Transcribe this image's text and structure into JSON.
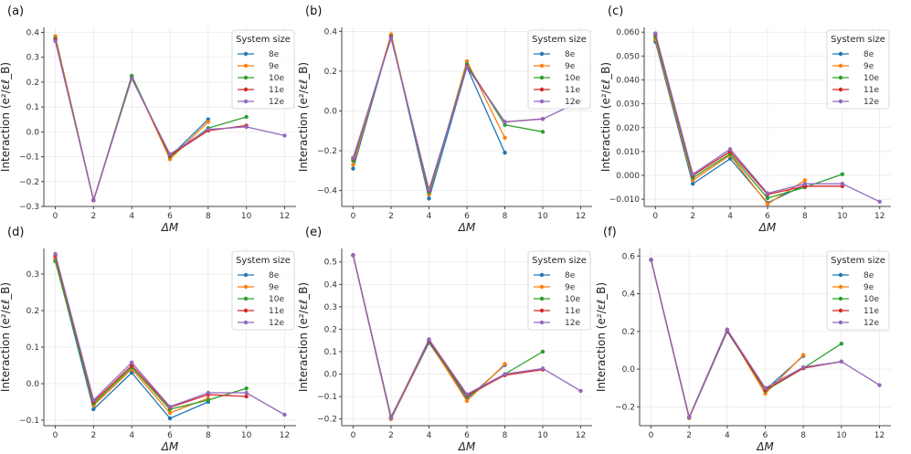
{
  "legend": {
    "title": "System size",
    "series_names": [
      "8e",
      "9e",
      "10e",
      "11e",
      "12e"
    ],
    "colors": [
      "#1f77b4",
      "#ff7f0e",
      "#2ca02c",
      "#d62728",
      "#9467bd"
    ]
  },
  "chart_data": [
    {
      "type": "line",
      "panel_label": "(a)",
      "xlabel": "ΔM",
      "ylabel": "Interaction (e²/εℓ_B)",
      "xlim": [
        -0.6,
        12.6
      ],
      "ylim": [
        -0.3,
        0.42
      ],
      "xticks": [
        0,
        2,
        4,
        6,
        8,
        10,
        12
      ],
      "yticks": [
        -0.3,
        -0.2,
        -0.1,
        0.0,
        0.1,
        0.2,
        0.3,
        0.4
      ],
      "ytick_labels": [
        "−0.3",
        "−0.2",
        "−0.1",
        "0.0",
        "0.1",
        "0.2",
        "0.3",
        "0.4"
      ],
      "series": [
        {
          "name": "8e",
          "x": [
            0,
            2,
            4,
            6,
            8
          ],
          "values": [
            0.38,
            -0.275,
            0.22,
            -0.1,
            0.05
          ]
        },
        {
          "name": "9e",
          "x": [
            0,
            2,
            4,
            6,
            8
          ],
          "values": [
            0.385,
            -0.275,
            0.225,
            -0.11,
            0.04
          ]
        },
        {
          "name": "10e",
          "x": [
            0,
            2,
            4,
            6,
            8,
            10
          ],
          "values": [
            0.375,
            -0.275,
            0.225,
            -0.1,
            0.015,
            0.06
          ]
        },
        {
          "name": "11e",
          "x": [
            0,
            2,
            4,
            6,
            8,
            10
          ],
          "values": [
            0.37,
            -0.275,
            0.215,
            -0.095,
            0.005,
            0.025
          ]
        },
        {
          "name": "12e",
          "x": [
            0,
            2,
            4,
            6,
            8,
            10,
            12
          ],
          "values": [
            0.365,
            -0.275,
            0.215,
            -0.09,
            0.01,
            0.02,
            -0.015
          ]
        }
      ]
    },
    {
      "type": "line",
      "panel_label": "(b)",
      "xlabel": "ΔM",
      "ylabel": "Interaction (e²/εℓ_B)",
      "xlim": [
        -0.6,
        12.6
      ],
      "ylim": [
        -0.48,
        0.42
      ],
      "xticks": [
        0,
        2,
        4,
        6,
        8,
        10,
        12
      ],
      "yticks": [
        -0.4,
        -0.2,
        0.0,
        0.2,
        0.4
      ],
      "ytick_labels": [
        "−0.4",
        "−0.2",
        "0.0",
        "0.2",
        "0.4"
      ],
      "series": [
        {
          "name": "8e",
          "x": [
            0,
            2,
            4,
            6,
            8
          ],
          "values": [
            -0.29,
            0.38,
            -0.44,
            0.22,
            -0.21
          ]
        },
        {
          "name": "9e",
          "x": [
            0,
            2,
            4,
            6,
            8
          ],
          "values": [
            -0.27,
            0.385,
            -0.42,
            0.25,
            -0.135
          ]
        },
        {
          "name": "10e",
          "x": [
            0,
            2,
            4,
            6,
            8,
            10
          ],
          "values": [
            -0.25,
            0.375,
            -0.41,
            0.235,
            -0.07,
            -0.105
          ]
        },
        {
          "name": "11e",
          "x": [
            0,
            2,
            4,
            6,
            8,
            10
          ],
          "values": [
            -0.24,
            0.37,
            -0.4,
            0.225,
            -0.055,
            -0.04
          ]
        },
        {
          "name": "12e",
          "x": [
            0,
            2,
            4,
            6,
            8,
            10,
            12
          ],
          "values": [
            -0.235,
            0.365,
            -0.395,
            0.22,
            -0.055,
            -0.04,
            0.05
          ]
        }
      ]
    },
    {
      "type": "line",
      "panel_label": "(c)",
      "xlabel": "ΔM",
      "ylabel": "Interaction (e²/εℓ_B)",
      "xlim": [
        -0.6,
        12.6
      ],
      "ylim": [
        -0.013,
        0.062
      ],
      "xticks": [
        0,
        2,
        4,
        6,
        8,
        10,
        12
      ],
      "yticks": [
        -0.01,
        0.0,
        0.01,
        0.02,
        0.03,
        0.04,
        0.05,
        0.06
      ],
      "ytick_labels": [
        "−0.010",
        "0.000",
        "0.010",
        "0.020",
        "0.030",
        "0.040",
        "0.050",
        "0.060"
      ],
      "series": [
        {
          "name": "8e",
          "x": [
            0,
            2,
            4,
            6,
            8
          ],
          "values": [
            0.056,
            -0.0035,
            0.007,
            -0.0115,
            -0.004
          ]
        },
        {
          "name": "9e",
          "x": [
            0,
            2,
            4,
            6,
            8
          ],
          "values": [
            0.057,
            -0.002,
            0.0085,
            -0.012,
            -0.002
          ]
        },
        {
          "name": "10e",
          "x": [
            0,
            2,
            4,
            6,
            8,
            10
          ],
          "values": [
            0.058,
            -0.001,
            0.009,
            -0.0095,
            -0.005,
            0.0005
          ]
        },
        {
          "name": "11e",
          "x": [
            0,
            2,
            4,
            6,
            8,
            10
          ],
          "values": [
            0.059,
            0.0,
            0.01,
            -0.008,
            -0.0045,
            -0.0045
          ]
        },
        {
          "name": "12e",
          "x": [
            0,
            2,
            4,
            6,
            8,
            10,
            12
          ],
          "values": [
            0.0595,
            0.0005,
            0.011,
            -0.0075,
            -0.0035,
            -0.0035,
            -0.011
          ]
        }
      ]
    },
    {
      "type": "line",
      "panel_label": "(d)",
      "xlabel": "ΔM",
      "ylabel": "Interaction (e²/εℓ_B)",
      "xlim": [
        -0.6,
        12.6
      ],
      "ylim": [
        -0.115,
        0.37
      ],
      "xticks": [
        0,
        2,
        4,
        6,
        8,
        10,
        12
      ],
      "yticks": [
        -0.1,
        0.0,
        0.1,
        0.2,
        0.3
      ],
      "ytick_labels": [
        "−0.1",
        "0.0",
        "0.1",
        "0.2",
        "0.3"
      ],
      "series": [
        {
          "name": "8e",
          "x": [
            0,
            2,
            4,
            6,
            8
          ],
          "values": [
            0.34,
            -0.07,
            0.03,
            -0.095,
            -0.05
          ]
        },
        {
          "name": "9e",
          "x": [
            0,
            2,
            4,
            6,
            8
          ],
          "values": [
            0.345,
            -0.06,
            0.04,
            -0.08,
            -0.04
          ]
        },
        {
          "name": "10e",
          "x": [
            0,
            2,
            4,
            6,
            8,
            10
          ],
          "values": [
            0.335,
            -0.055,
            0.045,
            -0.07,
            -0.045,
            -0.013
          ]
        },
        {
          "name": "11e",
          "x": [
            0,
            2,
            4,
            6,
            8,
            10
          ],
          "values": [
            0.35,
            -0.05,
            0.05,
            -0.065,
            -0.03,
            -0.035
          ]
        },
        {
          "name": "12e",
          "x": [
            0,
            2,
            4,
            6,
            8,
            10,
            12
          ],
          "values": [
            0.355,
            -0.045,
            0.058,
            -0.063,
            -0.025,
            -0.025,
            -0.085
          ]
        }
      ]
    },
    {
      "type": "line",
      "panel_label": "(e)",
      "xlabel": "ΔM",
      "ylabel": "Interaction (e²/εℓ_B)",
      "xlim": [
        -0.6,
        12.6
      ],
      "ylim": [
        -0.23,
        0.56
      ],
      "xticks": [
        0,
        2,
        4,
        6,
        8,
        10,
        12
      ],
      "yticks": [
        -0.2,
        -0.1,
        0.0,
        0.1,
        0.2,
        0.3,
        0.4,
        0.5
      ],
      "ytick_labels": [
        "−0.2",
        "−0.1",
        "0.0",
        "0.1",
        "0.2",
        "0.3",
        "0.4",
        "0.5"
      ],
      "series": [
        {
          "name": "8e",
          "x": [
            0,
            2,
            4,
            6,
            8
          ],
          "values": [
            0.53,
            -0.2,
            0.14,
            -0.11,
            0.04
          ]
        },
        {
          "name": "9e",
          "x": [
            0,
            2,
            4,
            6,
            8
          ],
          "values": [
            0.53,
            -0.2,
            0.145,
            -0.12,
            0.045
          ]
        },
        {
          "name": "10e",
          "x": [
            0,
            2,
            4,
            6,
            8,
            10
          ],
          "values": [
            0.53,
            -0.19,
            0.145,
            -0.1,
            0.0,
            0.1
          ]
        },
        {
          "name": "11e",
          "x": [
            0,
            2,
            4,
            6,
            8,
            10
          ],
          "values": [
            0.53,
            -0.195,
            0.15,
            -0.095,
            -0.005,
            0.02
          ]
        },
        {
          "name": "12e",
          "x": [
            0,
            2,
            4,
            6,
            8,
            10,
            12
          ],
          "values": [
            0.53,
            -0.195,
            0.155,
            -0.09,
            0.0,
            0.025,
            -0.075
          ]
        }
      ]
    },
    {
      "type": "line",
      "panel_label": "(f)",
      "xlabel": "ΔM",
      "ylabel": "Interaction (e²/εℓ_B)",
      "xlim": [
        -0.6,
        12.6
      ],
      "ylim": [
        -0.3,
        0.64
      ],
      "xticks": [
        0,
        2,
        4,
        6,
        8,
        10,
        12
      ],
      "yticks": [
        -0.2,
        0.0,
        0.2,
        0.4,
        0.6
      ],
      "ytick_labels": [
        "−0.2",
        "0.0",
        "0.2",
        "0.4",
        "0.6"
      ],
      "series": [
        {
          "name": "8e",
          "x": [
            0,
            2,
            4,
            6,
            8
          ],
          "values": [
            0.58,
            -0.26,
            0.2,
            -0.11,
            0.07
          ]
        },
        {
          "name": "9e",
          "x": [
            0,
            2,
            4,
            6,
            8
          ],
          "values": [
            0.58,
            -0.26,
            0.21,
            -0.13,
            0.075
          ]
        },
        {
          "name": "10e",
          "x": [
            0,
            2,
            4,
            6,
            8,
            10
          ],
          "values": [
            0.58,
            -0.255,
            0.205,
            -0.115,
            0.005,
            0.135
          ]
        },
        {
          "name": "11e",
          "x": [
            0,
            2,
            4,
            6,
            8,
            10
          ],
          "values": [
            0.58,
            -0.255,
            0.205,
            -0.11,
            0.005,
            0.04
          ]
        },
        {
          "name": "12e",
          "x": [
            0,
            2,
            4,
            6,
            8,
            10,
            12
          ],
          "values": [
            0.58,
            -0.255,
            0.21,
            -0.1,
            0.01,
            0.04,
            -0.085
          ]
        }
      ]
    }
  ]
}
